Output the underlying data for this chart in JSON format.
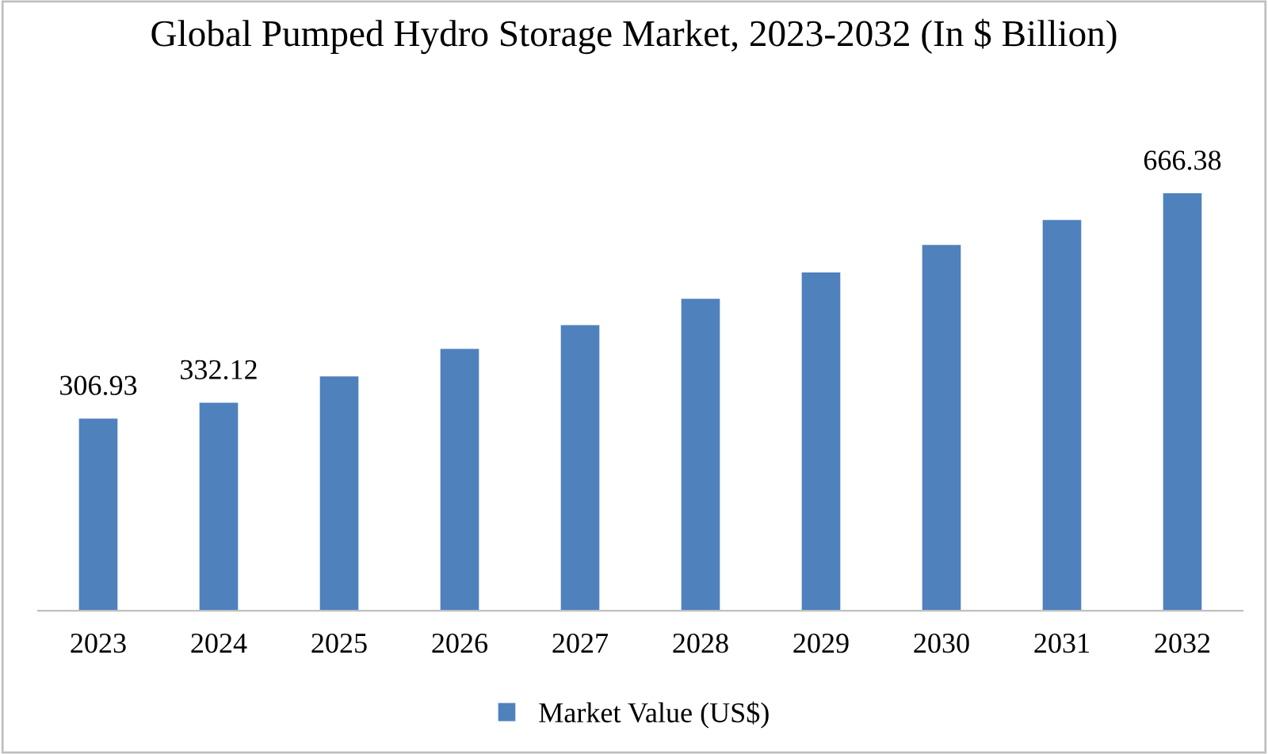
{
  "chart_data": {
    "type": "bar",
    "title": "Global Pumped Hydro Storage Market, 2023-2032 (In $ Billion)",
    "categories": [
      "2023",
      "2024",
      "2025",
      "2026",
      "2027",
      "2028",
      "2029",
      "2030",
      "2031",
      "2032"
    ],
    "series": [
      {
        "name": "Market Value (US$)",
        "color": "#4f81bd",
        "values": [
          306.93,
          332.12,
          374,
          418,
          456,
          498,
          540,
          584,
          624,
          666.38
        ],
        "value_labels": [
          "306.93",
          "332.12",
          null,
          null,
          null,
          null,
          null,
          null,
          null,
          "666.38"
        ]
      }
    ],
    "grid": false,
    "legend": "bottom"
  }
}
